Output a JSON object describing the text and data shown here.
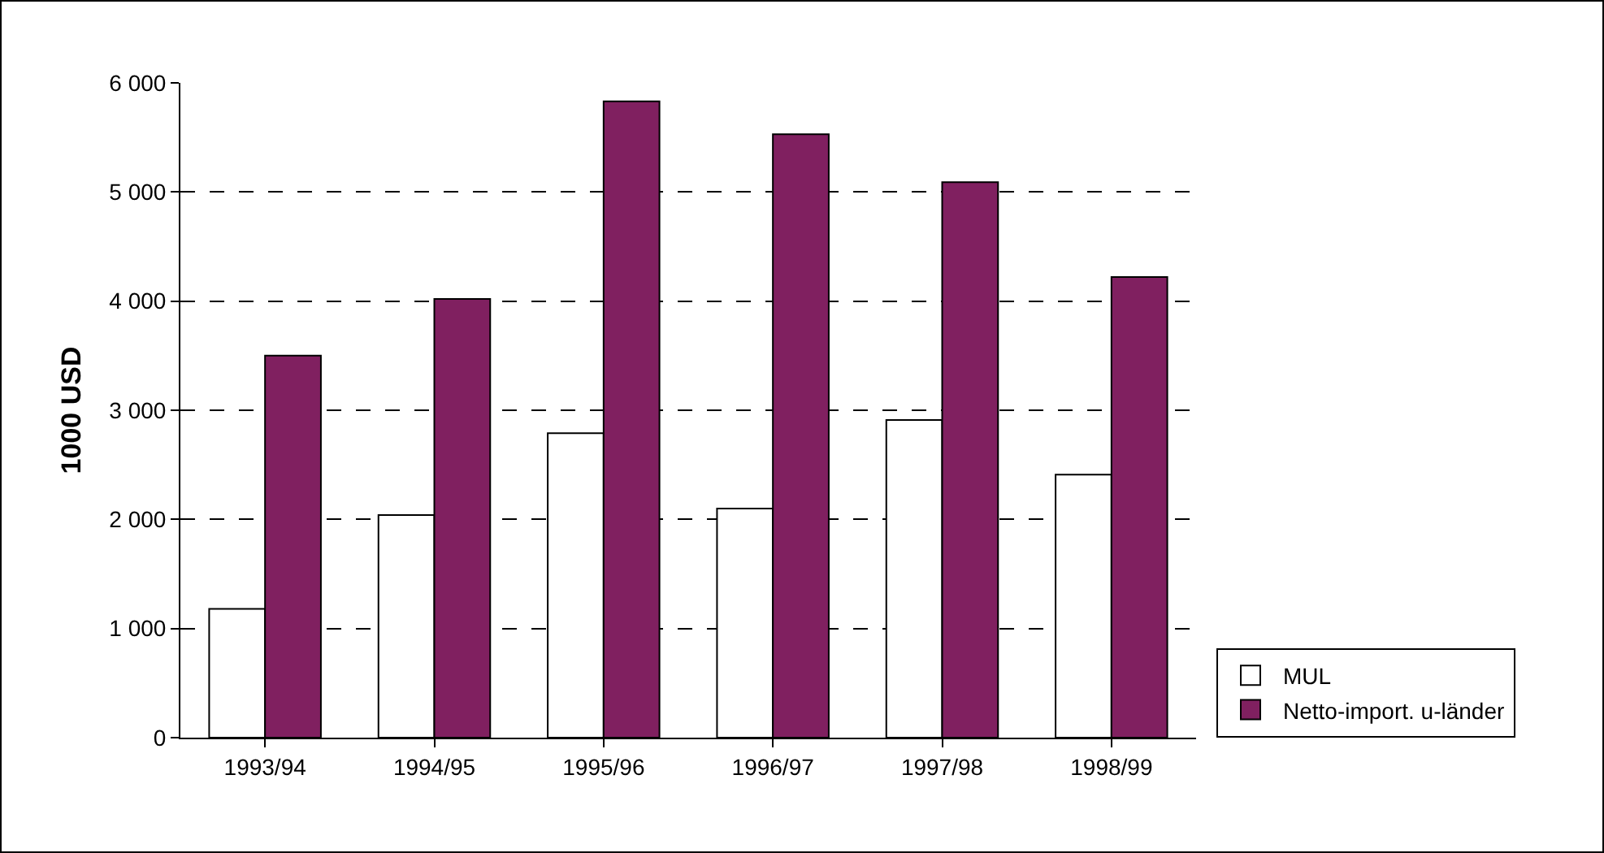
{
  "chart_data": {
    "type": "bar",
    "ylabel": "1000 USD",
    "categories": [
      "1993/94",
      "1994/95",
      "1995/96",
      "1996/97",
      "1997/98",
      "1998/99"
    ],
    "series": [
      {
        "name": "MUL",
        "color": "#ffffff",
        "values": [
          1180,
          2040,
          2790,
          2100,
          2910,
          2410
        ]
      },
      {
        "name": "Netto-import. u-länder",
        "color": "#802060",
        "values": [
          3500,
          4020,
          5830,
          5530,
          5090,
          4220
        ]
      }
    ],
    "ylim": [
      0,
      6000
    ],
    "yticks": [
      {
        "value": 0,
        "label": "0"
      },
      {
        "value": 1000,
        "label": "1 000"
      },
      {
        "value": 2000,
        "label": "2 000"
      },
      {
        "value": 3000,
        "label": "3 000"
      },
      {
        "value": 4000,
        "label": "4 000"
      },
      {
        "value": 5000,
        "label": "5 000"
      },
      {
        "value": 6000,
        "label": "6 000"
      }
    ],
    "grid": "y",
    "legend": "bottom right"
  }
}
